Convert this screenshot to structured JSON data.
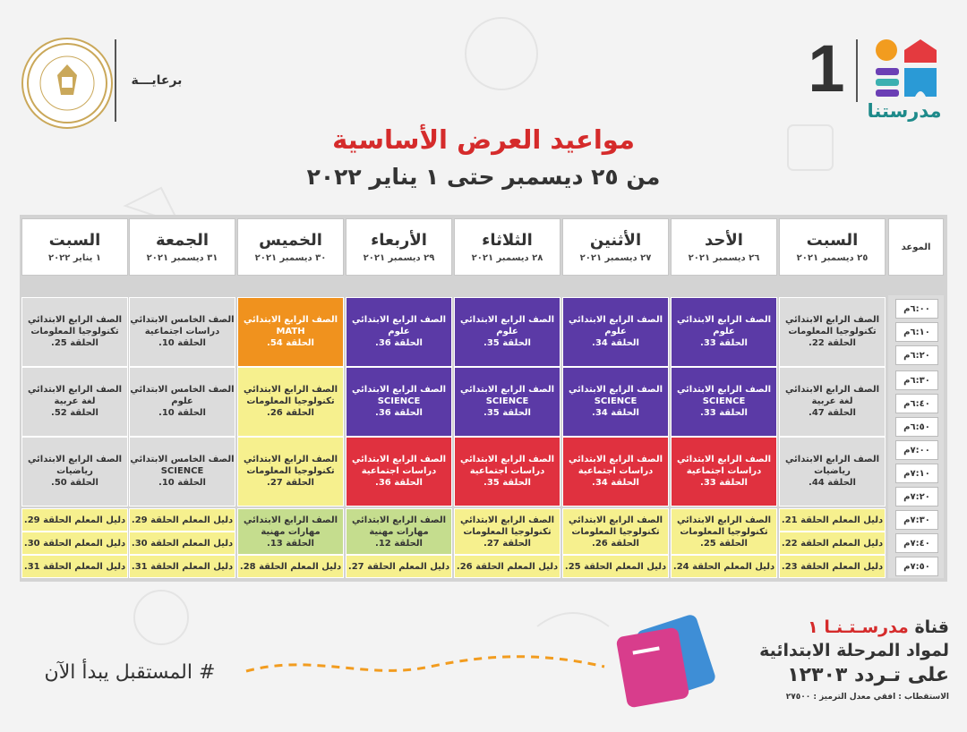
{
  "header": {
    "logo_text": "مدرستنا",
    "channel_number": "1",
    "sponsor": "برعايـــة",
    "title": "مواعيد العرض الأساسية",
    "subtitle": "من ٢٥ ديسمبر حتى ١ يناير ٢٠٢٢"
  },
  "table": {
    "mawid_label": "الموعد",
    "days": [
      {
        "name": "السبت",
        "date": "٢٥ ديسمبر ٢٠٢١"
      },
      {
        "name": "الأحد",
        "date": "٢٦ ديسمبر ٢٠٢١"
      },
      {
        "name": "الأثنين",
        "date": "٢٧ ديسمبر ٢٠٢١"
      },
      {
        "name": "الثلاثاء",
        "date": "٢٨ ديسمبر ٢٠٢١"
      },
      {
        "name": "الأربعاء",
        "date": "٢٩ ديسمبر ٢٠٢١"
      },
      {
        "name": "الخميس",
        "date": "٣٠ ديسمبر ٢٠٢١"
      },
      {
        "name": "الجمعة",
        "date": "٣١ ديسمبر ٢٠٢١"
      },
      {
        "name": "السبت",
        "date": "١ يناير ٢٠٢٢"
      }
    ],
    "times": [
      "٦:٠٠م",
      "٦:١٠م",
      "٦:٢٠م",
      "٦:٣٠م",
      "٦:٤٠م",
      "٦:٥٠م",
      "٧:٠٠م",
      "٧:١٠م",
      "٧:٢٠م",
      "٧:٣٠م",
      "٧:٤٠م",
      "٧:٥٠م"
    ],
    "blocks": [
      [
        {
          "color": "grey",
          "l1": "الصف الرابع الابتدائي",
          "l2": "تكنولوجيا المعلومات",
          "l3": "الحلقة 22."
        },
        {
          "color": "purple",
          "l1": "الصف الرابع الابتدائي",
          "l2": "علوم",
          "l3": "الحلقة 33."
        },
        {
          "color": "purple",
          "l1": "الصف الرابع الابتدائي",
          "l2": "علوم",
          "l3": "الحلقة 34."
        },
        {
          "color": "purple",
          "l1": "الصف الرابع الابتدائي",
          "l2": "علوم",
          "l3": "الحلقة 35."
        },
        {
          "color": "purple",
          "l1": "الصف الرابع الابتدائي",
          "l2": "علوم",
          "l3": "الحلقة 36."
        },
        {
          "color": "orange",
          "l1": "الصف الرابع الابتدائي",
          "l2": "MATH",
          "l3": "الحلقة 54."
        },
        {
          "color": "grey",
          "l1": "الصف الخامس الابتدائي",
          "l2": "دراسات اجتماعية",
          "l3": "الحلقة 10."
        },
        {
          "color": "grey",
          "l1": "الصف الرابع الابتدائي",
          "l2": "تكنولوجيا المعلومات",
          "l3": "الحلقة 25."
        }
      ],
      [
        {
          "color": "grey",
          "l1": "الصف الرابع الابتدائي",
          "l2": "لغة عربية",
          "l3": "الحلقة 47."
        },
        {
          "color": "purple",
          "l1": "الصف الرابع الابتدائي",
          "l2": "SCIENCE",
          "l3": "الحلقة 33."
        },
        {
          "color": "purple",
          "l1": "الصف الرابع الابتدائي",
          "l2": "SCIENCE",
          "l3": "الحلقة 34."
        },
        {
          "color": "purple",
          "l1": "الصف الرابع الابتدائي",
          "l2": "SCIENCE",
          "l3": "الحلقة 35."
        },
        {
          "color": "purple",
          "l1": "الصف الرابع الابتدائي",
          "l2": "SCIENCE",
          "l3": "الحلقة 36."
        },
        {
          "color": "yellow",
          "l1": "الصف الرابع الابتدائي",
          "l2": "تكنولوجيا المعلومات",
          "l3": "الحلقة 26."
        },
        {
          "color": "grey",
          "l1": "الصف الخامس الابتدائي",
          "l2": "علوم",
          "l3": "الحلقة 10."
        },
        {
          "color": "grey",
          "l1": "الصف الرابع الابتدائي",
          "l2": "لغة عربية",
          "l3": "الحلقة 52."
        }
      ],
      [
        {
          "color": "grey",
          "l1": "الصف الرابع الابتدائي",
          "l2": "رياضيات",
          "l3": "الحلقة 44."
        },
        {
          "color": "red",
          "l1": "الصف الرابع الابتدائي",
          "l2": "دراسات اجتماعية",
          "l3": "الحلقة 33."
        },
        {
          "color": "red",
          "l1": "الصف الرابع الابتدائي",
          "l2": "دراسات اجتماعية",
          "l3": "الحلقة 34."
        },
        {
          "color": "red",
          "l1": "الصف الرابع الابتدائي",
          "l2": "دراسات اجتماعية",
          "l3": "الحلقة 35."
        },
        {
          "color": "red",
          "l1": "الصف الرابع الابتدائي",
          "l2": "دراسات اجتماعية",
          "l3": "الحلقة 36."
        },
        {
          "color": "yellow",
          "l1": "الصف الرابع الابتدائي",
          "l2": "تكنولوجيا المعلومات",
          "l3": "الحلقة 27."
        },
        {
          "color": "grey",
          "l1": "الصف الخامس الابتدائي",
          "l2": "SCIENCE",
          "l3": "الحلقة 10."
        },
        {
          "color": "grey",
          "l1": "الصف الرابع الابتدائي",
          "l2": "رياضيات",
          "l3": "الحلقة 50."
        }
      ]
    ],
    "guide_rows": [
      [
        "دليل المعلم  الحلقة  21.",
        null,
        null,
        null,
        null,
        null,
        "دليل المعلم  الحلقة  29.",
        "دليل المعلم  الحلقة  29."
      ],
      [
        "دليل المعلم  الحلقة  22.",
        null,
        null,
        null,
        null,
        null,
        "دليل المعلم  الحلقة  30.",
        "دليل المعلم  الحلقة  30."
      ],
      [
        "دليل المعلم  الحلقة  23.",
        "دليل المعلم  الحلقة  24.",
        "دليل المعلم  الحلقة  25.",
        "دليل المعلم  الحلقة  26.",
        "دليل المعلم  الحلقة  27.",
        "دليل المعلم  الحلقة  28.",
        "دليل المعلم  الحلقة  31.",
        "دليل المعلم  الحلقة  31."
      ]
    ],
    "late_blocks": [
      {
        "color": "yellow",
        "l1": "الصف الرابع الابتدائي",
        "l2": "تكنولوجيا المعلومات",
        "l3": "الحلقة 25."
      },
      {
        "color": "yellow",
        "l1": "الصف الرابع الابتدائي",
        "l2": "تكنولوجيا المعلومات",
        "l3": "الحلقة 26."
      },
      {
        "color": "yellow",
        "l1": "الصف الرابع الابتدائي",
        "l2": "تكنولوجيا المعلومات",
        "l3": "الحلقة 27."
      },
      {
        "color": "green",
        "l1": "الصف الرابع الابتدائي",
        "l2": "مهارات مهنية",
        "l3": "الحلقة 12."
      },
      {
        "color": "green",
        "l1": "الصف الرابع الابتدائي",
        "l2": "مهارات مهنية",
        "l3": "الحلقة 13."
      }
    ]
  },
  "footer": {
    "hashtag": "# المستقبل يبدأ الآن",
    "line1_a": "قناة ",
    "line1_b": "مدرسـتـنـا ١",
    "line2": "لمواد المرحلة الابتدائية",
    "line3": "على تـردد ١٢٣٠٣",
    "line4": "الاستقطاب : افقي معدل الترميز : ٢٧٥٠٠"
  },
  "colors": {
    "grey": "#dcdcdc",
    "purple": "#5b3aa6",
    "orange": "#f0921e",
    "yellow": "#f6f08e",
    "red": "#e0313f",
    "green": "#c5dd8e",
    "title_red": "#d52b2b"
  }
}
